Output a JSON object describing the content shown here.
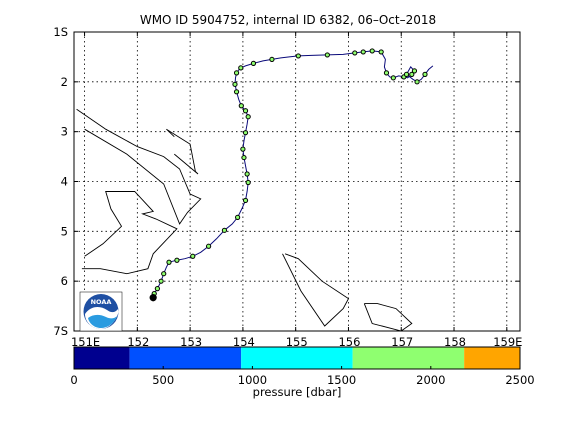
{
  "chart_data": {
    "type": "line",
    "title": "WMO ID 5904752, internal ID 6382, 06–Oct–2018",
    "x_axis": {
      "range": [
        150.8,
        159.25
      ],
      "ticks": [
        151,
        152,
        153,
        154,
        155,
        156,
        157,
        158,
        159
      ],
      "tick_labels": [
        "151E",
        "152",
        "153",
        "154",
        "155",
        "156",
        "157",
        "158",
        "159E"
      ]
    },
    "y_axis": {
      "range_south": [
        1,
        7
      ],
      "ticks": [
        1,
        2,
        3,
        4,
        5,
        6,
        7
      ],
      "tick_labels": [
        "1S",
        "2",
        "3",
        "4",
        "5",
        "6",
        "7S"
      ]
    },
    "grid": true,
    "float_track": {
      "lon": [
        152.3,
        152.32,
        152.38,
        152.45,
        152.5,
        152.55,
        152.6,
        152.75,
        152.9,
        153.05,
        153.2,
        153.35,
        153.5,
        153.65,
        153.8,
        153.9,
        153.98,
        154.05,
        154.08,
        154.1,
        154.08,
        154.05,
        154.02,
        154.0,
        154.02,
        154.05,
        154.08,
        154.1,
        154.05,
        153.97,
        153.92,
        153.88,
        153.85,
        153.86,
        153.88,
        153.92,
        153.96,
        154.05,
        154.2,
        154.38,
        154.55,
        154.72,
        154.88,
        155.05,
        155.3,
        155.6,
        155.9,
        156.12,
        156.28,
        156.45,
        156.62,
        156.7,
        156.68,
        156.72,
        156.78,
        156.85,
        156.95,
        157.05,
        157.12,
        157.2,
        157.25,
        157.18,
        157.1,
        157.22,
        157.3,
        157.38,
        157.45,
        157.52,
        157.6
      ],
      "lat_south": [
        6.35,
        6.25,
        6.15,
        6.0,
        5.85,
        5.72,
        5.62,
        5.58,
        5.55,
        5.5,
        5.42,
        5.3,
        5.15,
        4.98,
        4.85,
        4.72,
        4.55,
        4.38,
        4.2,
        4.02,
        3.85,
        3.68,
        3.52,
        3.35,
        3.18,
        3.02,
        2.85,
        2.7,
        2.58,
        2.48,
        2.35,
        2.2,
        2.05,
        1.92,
        1.82,
        1.76,
        1.72,
        1.68,
        1.63,
        1.58,
        1.55,
        1.52,
        1.5,
        1.48,
        1.47,
        1.46,
        1.45,
        1.42,
        1.4,
        1.38,
        1.4,
        1.55,
        1.7,
        1.82,
        1.9,
        1.92,
        1.88,
        1.9,
        1.92,
        1.85,
        1.78,
        1.7,
        1.85,
        1.95,
        2.0,
        1.95,
        1.85,
        1.75,
        1.68
      ],
      "color": "#0a0a7a"
    },
    "profiles_with_values": {
      "lon": [
        152.3,
        152.32,
        152.38,
        152.45,
        152.5,
        152.6,
        152.75,
        153.05,
        153.35,
        153.65,
        153.9,
        154.05,
        154.1,
        154.08,
        154.02,
        154.0,
        154.05,
        154.1,
        154.05,
        153.97,
        153.88,
        153.85,
        153.88,
        153.96,
        154.2,
        154.55,
        155.05,
        155.6,
        156.12,
        156.28,
        156.45,
        156.62,
        156.72,
        156.85,
        157.05,
        157.2,
        157.25,
        157.1,
        157.3,
        157.45
      ],
      "lat_south": [
        6.35,
        6.25,
        6.15,
        6.0,
        5.85,
        5.62,
        5.58,
        5.5,
        5.3,
        4.98,
        4.72,
        4.38,
        4.02,
        3.85,
        3.52,
        3.35,
        3.02,
        2.7,
        2.58,
        2.48,
        2.2,
        2.05,
        1.82,
        1.72,
        1.63,
        1.55,
        1.48,
        1.46,
        1.42,
        1.4,
        1.38,
        1.4,
        1.82,
        1.92,
        1.9,
        1.85,
        1.78,
        1.85,
        2.0,
        1.85
      ],
      "pressure_dbar": [
        2000,
        2000,
        2000,
        2000,
        2000,
        2000,
        2000,
        2000,
        2000,
        2000,
        2000,
        2000,
        2000,
        2000,
        2000,
        2000,
        2000,
        2000,
        2000,
        2000,
        2000,
        2000,
        2000,
        2000,
        2000,
        2000,
        2000,
        2000,
        2000,
        2000,
        2000,
        2000,
        2000,
        2000,
        2000,
        2000,
        2000,
        2000,
        2000,
        2000
      ]
    },
    "deployment": {
      "lon": 152.3,
      "lat_south": 6.33
    },
    "coastlines": [
      {
        "lon": [
          150.85,
          151.4,
          152.0,
          152.5,
          152.8,
          153.0,
          153.2,
          152.95,
          152.8,
          152.5,
          151.8,
          151.0
        ],
        "lat_south": [
          2.55,
          2.95,
          3.3,
          3.5,
          3.75,
          4.25,
          4.35,
          4.62,
          4.85,
          4.05,
          3.45,
          2.95
        ]
      },
      {
        "lon": [
          151.0,
          151.35,
          151.65,
          151.7,
          151.5,
          151.4,
          151.95,
          152.3,
          152.1,
          152.35,
          152.75,
          152.3,
          152.2,
          151.8,
          151.3,
          150.95
        ],
        "lat_south": [
          5.5,
          5.25,
          4.95,
          4.9,
          4.55,
          4.2,
          4.2,
          4.6,
          4.65,
          4.75,
          4.95,
          5.45,
          5.75,
          5.85,
          5.75,
          5.75
        ]
      },
      {
        "lon": [
          152.7,
          152.55,
          153.0,
          153.1,
          153.15,
          152.7
        ],
        "lat_south": [
          3.1,
          2.95,
          3.25,
          3.8,
          3.85,
          3.45
        ]
      },
      {
        "lon": [
          154.8,
          155.05,
          155.5,
          156.0,
          155.9,
          155.55,
          155.1,
          154.75
        ],
        "lat_south": [
          5.45,
          5.55,
          6.0,
          6.35,
          6.55,
          6.9,
          6.2,
          5.45
        ]
      },
      {
        "lon": [
          156.3,
          156.55,
          156.9,
          157.2,
          157.0,
          156.45,
          156.3
        ],
        "lat_south": [
          6.45,
          6.45,
          6.55,
          6.85,
          7.0,
          6.85,
          6.45
        ]
      }
    ],
    "logo": "noaa-logo"
  },
  "colorbar": {
    "label": "pressure [dbar]",
    "range": [
      0,
      2500
    ],
    "ticks": [
      0,
      500,
      1000,
      1500,
      2000,
      2500
    ],
    "tick_labels": [
      "0",
      "500",
      "1000",
      "1500",
      "2000",
      "2500"
    ],
    "bands": [
      {
        "from": 0,
        "to": 312,
        "color": "#00008f"
      },
      {
        "from": 312,
        "to": 937,
        "color": "#0050ff"
      },
      {
        "from": 937,
        "to": 1562,
        "color": "#00ffff"
      },
      {
        "from": 1562,
        "to": 2187,
        "color": "#8fff70"
      },
      {
        "from": 2187,
        "to": 2500,
        "color": "#ffa500"
      }
    ]
  }
}
